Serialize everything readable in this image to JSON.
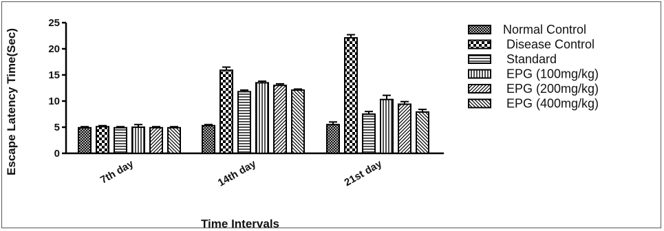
{
  "chart_data": {
    "type": "bar",
    "xlabel": "Time Intervals",
    "ylabel": "Escape Latency Time(Sec)",
    "ylim": [
      0,
      25
    ],
    "yticks": [
      "0",
      "5",
      "10",
      "15",
      "20",
      "25"
    ],
    "categories": [
      "7th day",
      "14th day",
      "21st day"
    ],
    "legend_position": "right",
    "series": [
      {
        "name": "Normal Control",
        "pattern": "crosshatch",
        "values": [
          4.9,
          5.3,
          5.5
        ],
        "errors": [
          0.2,
          0.2,
          0.5
        ]
      },
      {
        "name": " Disease Control",
        "pattern": "checker",
        "values": [
          5.1,
          15.9,
          22.1
        ],
        "errors": [
          0.2,
          0.6,
          0.6
        ]
      },
      {
        "name": " Standard",
        "pattern": "hlines",
        "values": [
          4.9,
          11.8,
          7.5
        ],
        "errors": [
          0.2,
          0.3,
          0.5
        ]
      },
      {
        "name": " EPG (100mg/kg)",
        "pattern": "vlines",
        "values": [
          5.0,
          13.5,
          10.3
        ],
        "errors": [
          0.5,
          0.3,
          0.8
        ]
      },
      {
        "name": " EPG (200mg/kg)",
        "pattern": "diag",
        "values": [
          4.9,
          13.0,
          9.4
        ],
        "errors": [
          0.2,
          0.3,
          0.5
        ]
      },
      {
        "name": " EPG (400mg/kg)",
        "pattern": "backdiag",
        "values": [
          4.9,
          12.1,
          7.9
        ],
        "errors": [
          0.2,
          0.2,
          0.5
        ]
      }
    ]
  }
}
